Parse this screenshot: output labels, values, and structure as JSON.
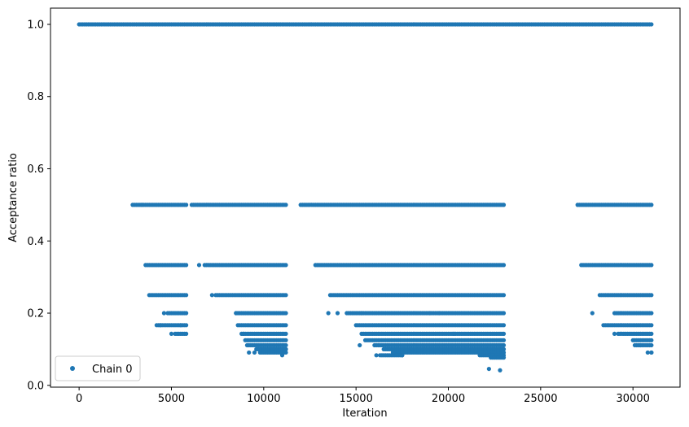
{
  "chart_data": {
    "type": "scatter",
    "xlabel": "Iteration",
    "ylabel": "Acceptance ratio",
    "xlim": [
      -1550,
      32550
    ],
    "ylim": [
      -0.005,
      1.045
    ],
    "x_ticks": [
      0,
      5000,
      10000,
      15000,
      20000,
      25000,
      30000
    ],
    "x_tick_labels": [
      "0",
      "5000",
      "10000",
      "15000",
      "20000",
      "25000",
      "30000"
    ],
    "y_ticks": [
      0.0,
      0.2,
      0.4,
      0.6,
      0.8,
      1.0
    ],
    "y_tick_labels": [
      "0.0",
      "0.2",
      "0.4",
      "0.6",
      "0.8",
      "1.0"
    ],
    "grid": false,
    "legend": {
      "position": "lower-left",
      "entries": [
        "Chain 0"
      ]
    },
    "series": [
      {
        "name": "Chain 0",
        "color": "#1f77b4",
        "marker": "circle",
        "bands": [
          {
            "y": 1.0,
            "segments": [
              [
                0,
                31000
              ]
            ]
          },
          {
            "y": 0.5,
            "segments": [
              [
                3000,
                5800
              ],
              [
                6200,
                11200
              ],
              [
                12000,
                23000
              ],
              [
                27000,
                31000
              ]
            ]
          },
          {
            "y": 0.3333,
            "segments": [
              [
                3600,
                5800
              ],
              [
                6800,
                11200
              ],
              [
                12800,
                23000
              ],
              [
                27200,
                31000
              ]
            ]
          },
          {
            "y": 0.25,
            "segments": [
              [
                3800,
                5800
              ],
              [
                7400,
                11200
              ],
              [
                13600,
                23000
              ],
              [
                28200,
                31000
              ]
            ]
          },
          {
            "y": 0.2,
            "segments": [
              [
                4800,
                5800
              ],
              [
                8500,
                11200
              ],
              [
                14500,
                23000
              ],
              [
                29000,
                31000
              ]
            ]
          },
          {
            "y": 0.1667,
            "segments": [
              [
                4300,
                5800
              ],
              [
                8600,
                11200
              ],
              [
                15000,
                23000
              ],
              [
                28500,
                31000
              ]
            ]
          },
          {
            "y": 0.1429,
            "segments": [
              [
                5200,
                5800
              ],
              [
                8800,
                11200
              ],
              [
                15300,
                23000
              ],
              [
                29200,
                31000
              ]
            ]
          },
          {
            "y": 0.125,
            "segments": [
              [
                9000,
                11200
              ],
              [
                15500,
                23000
              ],
              [
                30000,
                31000
              ]
            ]
          },
          {
            "y": 0.1111,
            "segments": [
              [
                9200,
                11200
              ],
              [
                16000,
                23000
              ],
              [
                30200,
                31000
              ]
            ]
          },
          {
            "y": 0.1,
            "segments": [
              [
                9600,
                11200
              ],
              [
                16500,
                23000
              ]
            ]
          },
          {
            "y": 0.0909,
            "segments": [
              [
                9800,
                11200
              ],
              [
                17000,
                23000
              ],
              [
                31000,
                31000
              ]
            ]
          },
          {
            "y": 0.0833,
            "segments": [
              [
                16300,
                17500
              ],
              [
                21800,
                23000
              ]
            ]
          },
          {
            "y": 0.0769,
            "segments": [
              [
                22300,
                23000
              ]
            ]
          }
        ],
        "scattered_points": [
          [
            2900,
            0.5
          ],
          [
            3400,
            0.5
          ],
          [
            4200,
            0.1667
          ],
          [
            4400,
            0.1667
          ],
          [
            4600,
            0.2
          ],
          [
            5000,
            0.1429
          ],
          [
            5500,
            0.1667
          ],
          [
            6100,
            0.5
          ],
          [
            6500,
            0.3333
          ],
          [
            7200,
            0.25
          ],
          [
            8500,
            0.2
          ],
          [
            8900,
            0.1429
          ],
          [
            9100,
            0.1111
          ],
          [
            9200,
            0.0909
          ],
          [
            9500,
            0.0909
          ],
          [
            9800,
            0.1
          ],
          [
            11000,
            0.0833
          ],
          [
            11200,
            0.1
          ],
          [
            13500,
            0.2
          ],
          [
            14000,
            0.2
          ],
          [
            15200,
            0.1111
          ],
          [
            15300,
            0.2
          ],
          [
            16100,
            0.0833
          ],
          [
            17000,
            0.0909
          ],
          [
            17500,
            0.0833
          ],
          [
            19000,
            0.2
          ],
          [
            19500,
            0.2
          ],
          [
            20300,
            0.1429
          ],
          [
            21000,
            0.1
          ],
          [
            21700,
            0.0833
          ],
          [
            22000,
            0.0909
          ],
          [
            22200,
            0.0455
          ],
          [
            22800,
            0.0417
          ],
          [
            22900,
            0.0833
          ],
          [
            27800,
            0.2
          ],
          [
            28400,
            0.1667
          ],
          [
            29000,
            0.1429
          ],
          [
            30100,
            0.1111
          ],
          [
            30400,
            0.1111
          ],
          [
            30800,
            0.0909
          ]
        ]
      }
    ]
  }
}
